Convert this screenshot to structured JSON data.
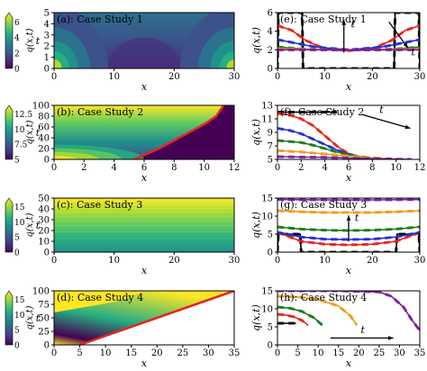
{
  "colorbar_label": "q(x,t)",
  "colors": {
    "viridis": [
      "#440154",
      "#472d7b",
      "#3b528b",
      "#2c728e",
      "#21918c",
      "#28ae80",
      "#5ec962",
      "#addc30",
      "#fde725"
    ],
    "red": "#e8231c",
    "blue": "#1f2fd4",
    "green": "#1b7a1b",
    "orange": "#f39a16",
    "purple": "#7a1d9e",
    "black": "#000000"
  },
  "chart_data": [
    {
      "id": "a",
      "type": "heatmap",
      "title": "(a): Case Study 1",
      "xlabel": "x",
      "ylabel": "t",
      "xlim": [
        0,
        30
      ],
      "ylim": [
        0,
        5
      ],
      "xticks": [
        "0",
        "10",
        "20",
        "30"
      ],
      "yticks": [
        "0",
        "1",
        "2",
        "3",
        "4",
        "5"
      ],
      "colorbar": {
        "min": 0,
        "max": 6.5,
        "ticks": [
          "0",
          "2",
          "4",
          "6"
        ]
      },
      "boundary_line": null
    },
    {
      "id": "b",
      "type": "heatmap",
      "title": "(b): Case Study 2",
      "xlabel": "x",
      "ylabel": "t",
      "xlim": [
        0,
        12
      ],
      "ylim": [
        0,
        100
      ],
      "xticks": [
        "0",
        "2",
        "4",
        "6",
        "8",
        "10",
        "12"
      ],
      "yticks": [
        "0",
        "20",
        "40",
        "60",
        "80",
        "100"
      ],
      "colorbar": {
        "min": 5,
        "max": 13,
        "ticks": [
          "5",
          "7.5",
          "10",
          "12.5"
        ]
      },
      "boundary_line": {
        "color": "red",
        "points": [
          [
            5.3,
            0
          ],
          [
            6,
            8
          ],
          [
            7,
            20
          ],
          [
            8,
            35
          ],
          [
            9,
            50
          ],
          [
            10,
            65
          ],
          [
            10.8,
            80
          ],
          [
            11.3,
            100
          ]
        ]
      }
    },
    {
      "id": "c",
      "type": "heatmap",
      "title": "(c): Case Study 3",
      "xlabel": "x",
      "ylabel": "t",
      "xlim": [
        0,
        30
      ],
      "ylim": [
        0,
        50
      ],
      "xticks": [
        "0",
        "10",
        "20",
        "30"
      ],
      "yticks": [
        "0",
        "10",
        "20",
        "30",
        "40",
        "50"
      ],
      "colorbar": {
        "min": 0,
        "max": 16,
        "ticks": [
          "0",
          "5",
          "10",
          "15"
        ]
      },
      "boundary_line": null
    },
    {
      "id": "d",
      "type": "heatmap",
      "title": "(d): Case Study 4",
      "xlabel": "x",
      "ylabel": "t",
      "xlim": [
        0,
        35
      ],
      "ylim": [
        0,
        100
      ],
      "xticks": [
        "0",
        "5",
        "10",
        "15",
        "20",
        "25",
        "30",
        "35"
      ],
      "yticks": [
        "0",
        "25",
        "50",
        "75",
        "100"
      ],
      "colorbar": {
        "min": 0,
        "max": 16,
        "ticks": [
          "0",
          "5",
          "10",
          "15"
        ]
      },
      "boundary_line": {
        "color": "red",
        "points": [
          [
            5,
            0
          ],
          [
            35,
            100
          ]
        ]
      }
    },
    {
      "id": "e",
      "type": "line",
      "title": "(e): Case Study 1",
      "xlabel": "x",
      "ylabel": "q(x,t)",
      "xlim": [
        0,
        30
      ],
      "ylim": [
        0,
        6
      ],
      "xticks": [
        "0",
        "10",
        "20",
        "30"
      ],
      "yticks": [
        "0",
        "2",
        "4",
        "6"
      ],
      "arrow_label": "t",
      "arrow_labels_count": 2,
      "series": [
        {
          "color": "black",
          "x": [
            0,
            0.2,
            5.2,
            5.4,
            24.6,
            24.8,
            29.8,
            30
          ],
          "y": [
            0,
            6,
            6,
            0,
            0,
            6,
            6,
            0
          ]
        },
        {
          "color": "red",
          "x": [
            0,
            3,
            6,
            10,
            15,
            20,
            24,
            27,
            30
          ],
          "y": [
            4.6,
            4.1,
            3.0,
            2.1,
            1.9,
            2.1,
            3.0,
            4.1,
            4.6
          ]
        },
        {
          "color": "blue",
          "x": [
            0,
            4,
            8,
            15,
            22,
            26,
            30
          ],
          "y": [
            3.1,
            2.7,
            2.3,
            2.0,
            2.3,
            2.7,
            3.1
          ]
        },
        {
          "color": "green",
          "x": [
            0,
            5,
            10,
            15,
            20,
            25,
            30
          ],
          "y": [
            2.3,
            2.1,
            2.0,
            2.0,
            2.0,
            2.1,
            2.3
          ]
        },
        {
          "color": "orange",
          "x": [
            0,
            10,
            20,
            30
          ],
          "y": [
            2.1,
            2.0,
            2.0,
            2.1
          ]
        },
        {
          "color": "purple",
          "x": [
            0,
            10,
            20,
            30
          ],
          "y": [
            2.0,
            2.0,
            2.0,
            2.0
          ]
        }
      ]
    },
    {
      "id": "f",
      "type": "line",
      "title": "(f): Case Study 2",
      "xlabel": "x",
      "ylabel": "q(x,t)",
      "xlim": [
        0,
        12
      ],
      "ylim": [
        5,
        13
      ],
      "xticks": [
        "0",
        "2",
        "4",
        "6",
        "8",
        "10",
        "12"
      ],
      "yticks": [
        "5",
        "7",
        "9",
        "11",
        "13"
      ],
      "arrow_label": "t",
      "arrow_labels_count": 1,
      "series": [
        {
          "color": "black",
          "x": [
            0,
            4.6,
            5.0
          ],
          "y": [
            12,
            12,
            12
          ]
        },
        {
          "color": "red",
          "x": [
            0,
            1,
            2,
            3,
            4,
            5,
            6,
            7
          ],
          "y": [
            11.8,
            11.6,
            11.0,
            10.0,
            8.5,
            7.0,
            5.8,
            5.2
          ]
        },
        {
          "color": "blue",
          "x": [
            0,
            1,
            2,
            3,
            4,
            5,
            6,
            7,
            8
          ],
          "y": [
            9.6,
            9.3,
            8.8,
            8.0,
            7.2,
            6.4,
            5.8,
            5.3,
            5.1
          ]
        },
        {
          "color": "green",
          "x": [
            0,
            2,
            3,
            4,
            5,
            6,
            7,
            8,
            9
          ],
          "y": [
            7.8,
            7.5,
            7.1,
            6.6,
            6.1,
            5.7,
            5.4,
            5.2,
            5.1
          ]
        },
        {
          "color": "orange",
          "x": [
            0,
            2,
            4,
            6,
            8,
            10
          ],
          "y": [
            6.3,
            6.1,
            5.8,
            5.5,
            5.2,
            5.05
          ]
        },
        {
          "color": "purple",
          "x": [
            0,
            4,
            8,
            11.3
          ],
          "y": [
            5.4,
            5.3,
            5.1,
            5.0
          ]
        }
      ]
    },
    {
      "id": "g",
      "type": "line",
      "title": "(g): Case Study 3",
      "xlabel": "x",
      "ylabel": "q(x,t)",
      "xlim": [
        0,
        30
      ],
      "ylim": [
        0,
        15
      ],
      "xticks": [
        "0",
        "10",
        "20",
        "30"
      ],
      "yticks": [
        "0",
        "5",
        "10",
        "15"
      ],
      "arrow_label": "t",
      "arrow_labels_count": 1,
      "series": [
        {
          "color": "black",
          "x": [
            0,
            0.2,
            4.8,
            5.0,
            25.0,
            25.2,
            29.8,
            30
          ],
          "y": [
            0,
            5,
            5,
            0,
            0,
            5,
            5,
            0
          ]
        },
        {
          "color": "red",
          "x": [
            0,
            2,
            5,
            10,
            15,
            20,
            25,
            28,
            30
          ],
          "y": [
            5.5,
            4.5,
            3.0,
            2.2,
            2.0,
            2.2,
            3.0,
            4.5,
            5.5
          ]
        },
        {
          "color": "blue",
          "x": [
            0,
            5,
            10,
            15,
            20,
            25,
            30
          ],
          "y": [
            5.5,
            4.2,
            3.6,
            3.5,
            3.6,
            4.2,
            5.5
          ]
        },
        {
          "color": "green",
          "x": [
            0,
            5,
            10,
            15,
            20,
            25,
            30
          ],
          "y": [
            7.0,
            6.4,
            6.1,
            6.0,
            6.1,
            6.4,
            7.0
          ]
        },
        {
          "color": "orange",
          "x": [
            0,
            5,
            10,
            15,
            20,
            25,
            30
          ],
          "y": [
            11.5,
            11.2,
            11.0,
            11.0,
            11.0,
            11.2,
            11.5
          ]
        },
        {
          "color": "purple",
          "x": [
            0,
            10,
            20,
            30
          ],
          "y": [
            14.6,
            14.5,
            14.5,
            14.6
          ]
        }
      ]
    },
    {
      "id": "h",
      "type": "line",
      "title": "(h): Case Study 4",
      "xlabel": "x",
      "ylabel": "q(x,t)",
      "xlim": [
        0,
        35
      ],
      "ylim": [
        0,
        15
      ],
      "xticks": [
        "0",
        "5",
        "10",
        "15",
        "20",
        "25",
        "30",
        "35"
      ],
      "yticks": [
        "0",
        "5",
        "10",
        "15"
      ],
      "arrow_label": "t",
      "arrow_labels_count": 1,
      "series": [
        {
          "color": "black",
          "x": [
            0,
            3.5,
            4.6
          ],
          "y": [
            6,
            6,
            6
          ]
        },
        {
          "color": "red",
          "x": [
            0,
            2,
            4,
            6,
            7.5
          ],
          "y": [
            8.5,
            8.3,
            7.8,
            6.8,
            5.5
          ]
        },
        {
          "color": "green",
          "x": [
            0,
            3,
            6,
            9,
            11
          ],
          "y": [
            10.5,
            10.2,
            9.3,
            7.5,
            5.5
          ]
        },
        {
          "color": "orange",
          "x": [
            0,
            5,
            10,
            15,
            18,
            19.5
          ],
          "y": [
            13.5,
            13.3,
            12.6,
            10.8,
            8.0,
            5.5
          ]
        },
        {
          "color": "purple",
          "x": [
            0,
            15,
            25,
            28,
            31,
            33,
            35
          ],
          "y": [
            15,
            15,
            14.7,
            13.5,
            10.5,
            7.0,
            4.0
          ]
        }
      ]
    }
  ]
}
